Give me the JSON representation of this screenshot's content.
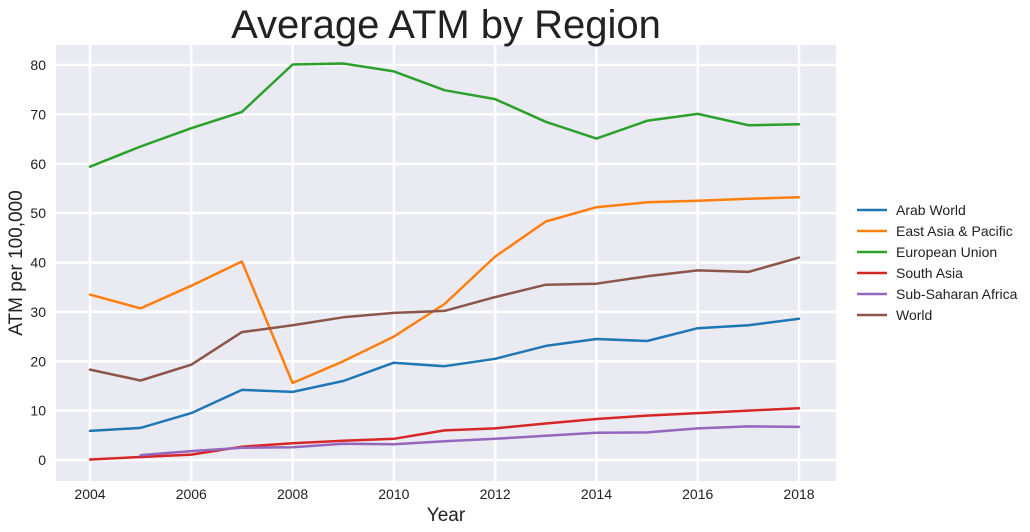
{
  "chart_data": {
    "type": "line",
    "title": "Average ATM by Region",
    "xlabel": "Year",
    "ylabel": "ATM per 100,000",
    "xlim": [
      2004,
      2018
    ],
    "ylim": [
      -4,
      84
    ],
    "x_ticks": [
      "2004",
      "2006",
      "2008",
      "2010",
      "2012",
      "2014",
      "2016",
      "2018"
    ],
    "y_ticks": [
      "0",
      "10",
      "20",
      "30",
      "40",
      "50",
      "60",
      "70",
      "80"
    ],
    "grid": true,
    "legend_position": "right",
    "x": [
      2004,
      2005,
      2006,
      2007,
      2008,
      2009,
      2010,
      2011,
      2012,
      2013,
      2014,
      2015,
      2016,
      2017,
      2018
    ],
    "series": [
      {
        "name": "Arab World",
        "color": "#1f77b4",
        "values": [
          5.9,
          6.5,
          9.5,
          14.2,
          13.8,
          16.0,
          19.7,
          19.0,
          20.5,
          23.1,
          24.5,
          24.1,
          26.7,
          27.3,
          28.6
        ]
      },
      {
        "name": "East Asia & Pacific",
        "color": "#ff7f0e",
        "values": [
          33.5,
          30.7,
          35.3,
          40.2,
          15.6,
          20.0,
          25.0,
          31.6,
          41.2,
          48.3,
          51.2,
          52.2,
          52.5,
          52.9,
          53.2
        ]
      },
      {
        "name": "European Union",
        "color": "#2ca02c",
        "values": [
          59.4,
          63.5,
          67.2,
          70.5,
          80.1,
          80.3,
          78.7,
          74.9,
          73.1,
          68.5,
          65.1,
          68.7,
          70.1,
          67.8,
          68.0
        ]
      },
      {
        "name": "South Asia",
        "color": "#d62728",
        "values": [
          0.1,
          0.6,
          1.1,
          2.7,
          3.4,
          3.9,
          4.3,
          6.0,
          6.4,
          7.4,
          8.3,
          9.0,
          9.5,
          10.0,
          10.5
        ]
      },
      {
        "name": "Sub-Saharan Africa",
        "color": "#9467bd",
        "values": [
          null,
          1.0,
          1.8,
          2.5,
          2.6,
          3.3,
          3.2,
          3.8,
          4.3,
          4.9,
          5.5,
          5.6,
          6.4,
          6.8,
          6.7
        ]
      },
      {
        "name": "World",
        "color": "#8c564b",
        "values": [
          18.3,
          16.1,
          19.3,
          25.9,
          27.3,
          28.9,
          29.8,
          30.2,
          33.0,
          35.5,
          35.7,
          37.2,
          38.4,
          38.1,
          41.0
        ]
      }
    ]
  }
}
